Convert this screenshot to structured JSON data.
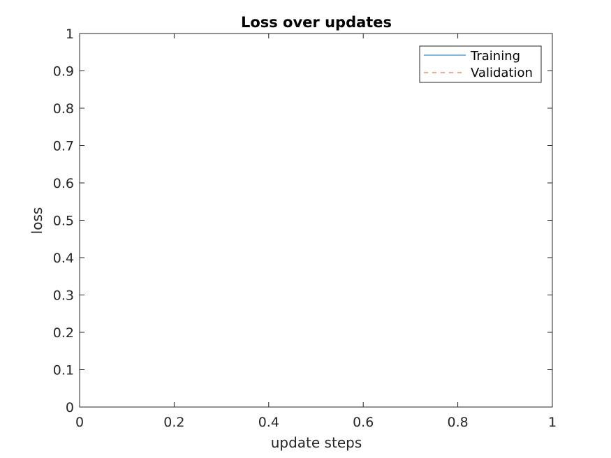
{
  "chart_data": {
    "type": "line",
    "title": "Loss over updates",
    "xlabel": "update steps",
    "ylabel": "loss",
    "xlim": [
      0,
      1
    ],
    "ylim": [
      0,
      1
    ],
    "xticks": [
      "0",
      "0.2",
      "0.4",
      "0.6",
      "0.8",
      "1"
    ],
    "yticks": [
      "0",
      "0.1",
      "0.2",
      "0.3",
      "0.4",
      "0.5",
      "0.6",
      "0.7",
      "0.8",
      "0.9",
      "1"
    ],
    "grid": false,
    "legend_position": "top-right",
    "series": [
      {
        "name": "Training",
        "color": "#0072BD",
        "style": "solid",
        "x": [],
        "y": []
      },
      {
        "name": "Validation",
        "color": "#D95319",
        "style": "dashed",
        "x": [],
        "y": []
      }
    ]
  }
}
